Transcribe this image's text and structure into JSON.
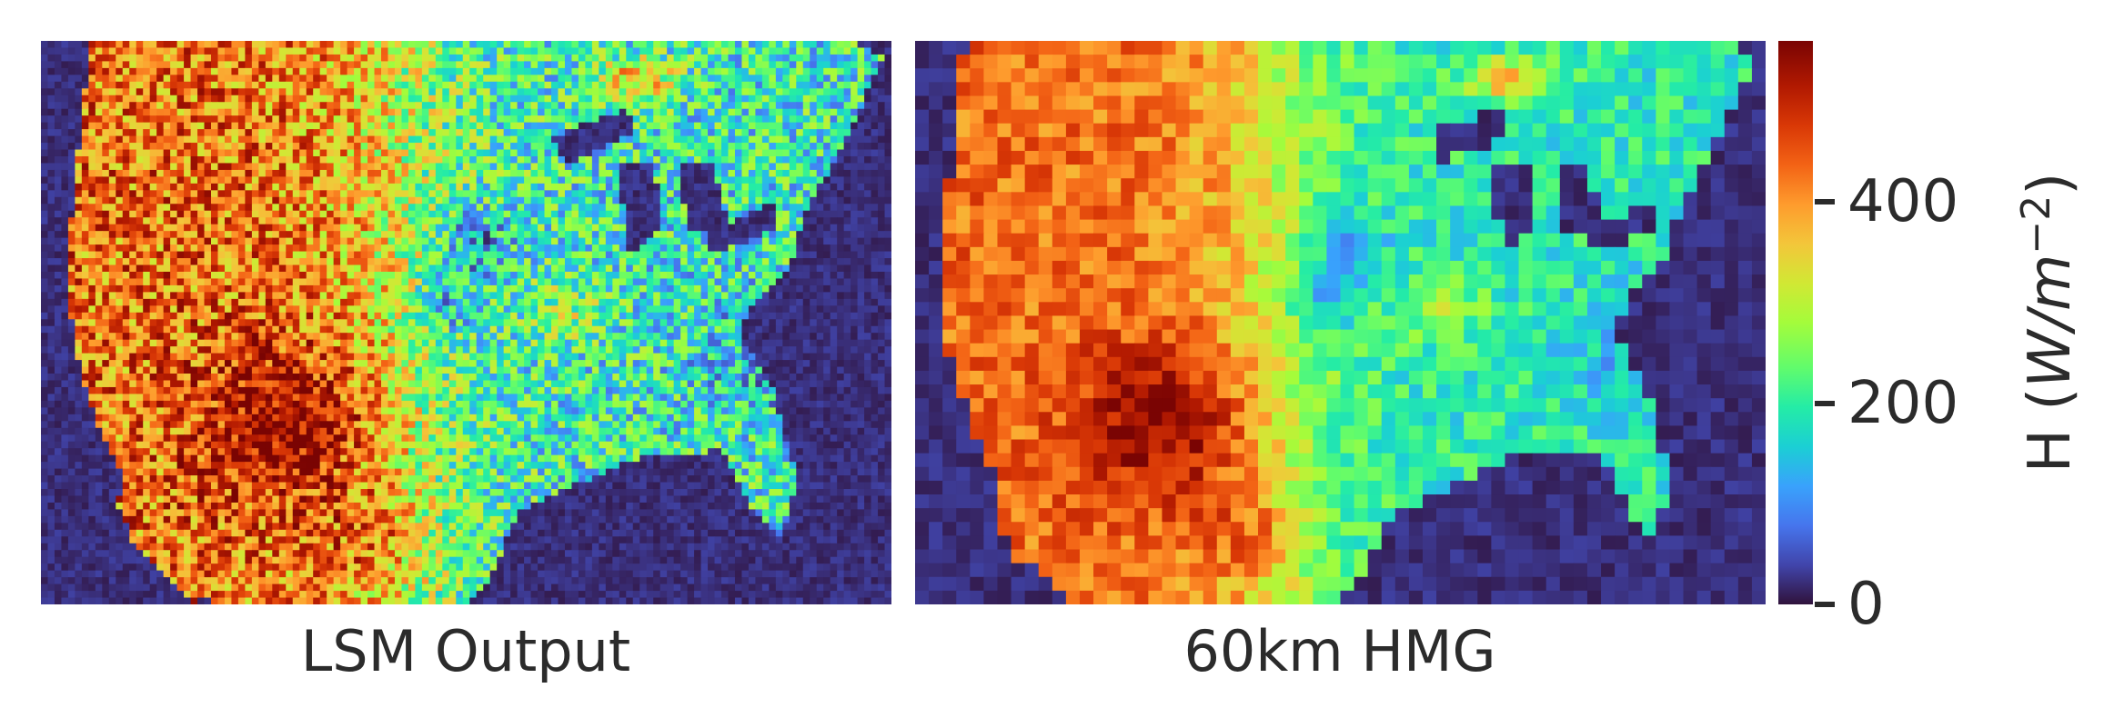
{
  "chart_data": [
    {
      "type": "heatmap",
      "panel": "left",
      "caption": "LSM Output",
      "region": "contiguous United States",
      "resolution": "native LSM grid",
      "colormap": "turbo",
      "value_range": [
        0,
        560
      ],
      "description": "Sensible heat flux map; high values (400-560) over the western US and Mexico, moderate (150-300) over the central/eastern US, low (0-60) over oceans and the Great Lakes."
    },
    {
      "type": "heatmap",
      "panel": "right",
      "caption": "60km HMG",
      "region": "contiguous United States",
      "resolution": "60km",
      "colormap": "turbo",
      "value_range": [
        0,
        560
      ],
      "description": "Same field aggregated to a coarse 60km homogeneous grid; blocky pixels with the same spatial pattern."
    }
  ],
  "colorbar": {
    "colormap": "turbo",
    "min": 0,
    "max": 560,
    "ticks": [
      0,
      200,
      400
    ],
    "label_prefix": "H (",
    "label_var": "W/m",
    "label_exp": "−2",
    "label_suffix": ")"
  },
  "colors": {
    "low": "#30123b",
    "mid": "#1ae4b6",
    "high": "#7a0403"
  }
}
